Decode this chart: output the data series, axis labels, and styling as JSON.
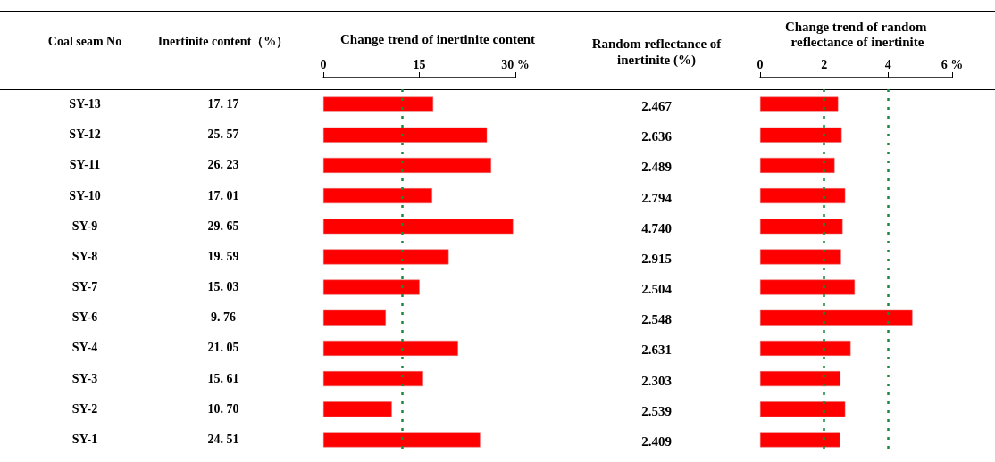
{
  "chart_data": [
    {
      "type": "other",
      "title": "Coal seam No",
      "annotations": [
        "SY-13",
        "SY-12",
        "SY-11",
        "SY-10",
        "SY-9",
        "SY-8",
        "SY-7",
        "SY-6",
        "SY-4",
        "SY-3",
        "SY-2",
        "SY-1"
      ]
    },
    {
      "type": "other",
      "title": "Inertinite content（%）",
      "annotations": [
        "17. 17",
        "25. 57",
        "26. 23",
        "17. 01",
        "29. 65",
        "19. 59",
        "15. 03",
        "9. 76",
        "21. 05",
        "15. 61",
        "10. 70",
        "24. 51"
      ]
    },
    {
      "type": "bar",
      "orientation": "horizontal",
      "title": "Change trend of inertinite content",
      "tick_labels": "x",
      "categories": [
        null,
        null,
        null,
        null,
        null,
        null,
        null,
        null,
        null,
        null,
        null,
        null
      ],
      "values": [
        17.17,
        25.57,
        26.23,
        17.01,
        29.65,
        19.59,
        15.03,
        9.76,
        21.05,
        15.61,
        10.7,
        24.51
      ],
      "color": "#ff0000",
      "xlim": [
        0,
        30
      ],
      "xticks": [
        0,
        15,
        {
          "value": 30,
          "label": "30 %"
        }
      ],
      "ref_lines": [
        {
          "axis": "x",
          "value": 12.3,
          "color": "#1a8a3a",
          "line_style": "dashed"
        }
      ]
    },
    {
      "type": "other",
      "title": "Random reflectance of inertinite (%)",
      "annotations": [
        "2.467",
        "2.636",
        "2.489",
        "2.794",
        "4.740",
        "2.915",
        "2.504",
        "2.548",
        "2.631",
        "2.303",
        "2.539",
        "2.409"
      ]
    },
    {
      "type": "bar",
      "orientation": "horizontal",
      "title": "Change trend of random reflectance of inertinite",
      "tick_labels": "x",
      "categories": [
        null,
        null,
        null,
        null,
        null,
        null,
        null,
        null,
        null,
        null,
        null,
        null
      ],
      "values": [
        2.44,
        2.55,
        2.33,
        2.66,
        2.58,
        2.53,
        2.96,
        4.76,
        2.83,
        2.51,
        2.66,
        2.5
      ],
      "color": "#ff0000",
      "xlim": [
        0,
        6
      ],
      "xticks": [
        0,
        2,
        4,
        {
          "value": 6,
          "label": "6 %"
        }
      ],
      "ref_lines": [
        {
          "axis": "x",
          "value": 2,
          "color": "#1a8a3a",
          "line_style": "dashed"
        },
        {
          "axis": "x",
          "value": 4,
          "color": "#1a8a3a",
          "line_style": "dashed"
        }
      ]
    }
  ]
}
